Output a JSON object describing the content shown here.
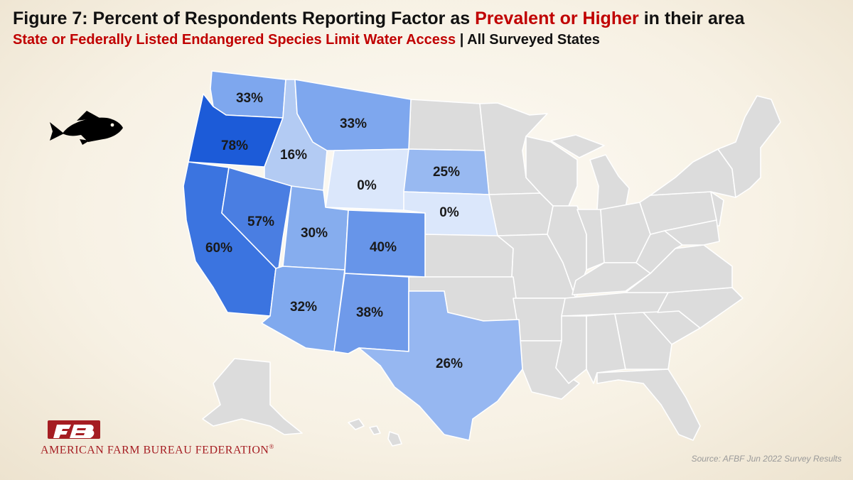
{
  "header": {
    "title_prefix": "Figure 7: Percent of Respondents Reporting Factor as",
    "title_highlight": "Prevalent or Higher",
    "title_suffix": "in their area",
    "subtitle_highlight": "State or Federally Listed Endangered Species Limit Water Access",
    "subtitle_suffix": "| All Surveyed States"
  },
  "map": {
    "metric": "Percent of respondents reporting factor as prevalent or higher",
    "states": [
      {
        "state": "Washington",
        "value": "33%",
        "color": "#7ea7ee"
      },
      {
        "state": "Oregon",
        "value": "78%",
        "color": "#1c5bd8"
      },
      {
        "state": "Idaho",
        "value": "16%",
        "color": "#b3cbf3"
      },
      {
        "state": "Montana",
        "value": "33%",
        "color": "#7ea7ee"
      },
      {
        "state": "Wyoming",
        "value": "0%",
        "color": "#dbe7fb"
      },
      {
        "state": "South Dakota",
        "value": "25%",
        "color": "#98b9f1"
      },
      {
        "state": "Nebraska",
        "value": "0%",
        "color": "#dbe7fb"
      },
      {
        "state": "California",
        "value": "60%",
        "color": "#3b74e0"
      },
      {
        "state": "Nevada",
        "value": "57%",
        "color": "#4a7ee2"
      },
      {
        "state": "Utah",
        "value": "30%",
        "color": "#86adee"
      },
      {
        "state": "Colorado",
        "value": "40%",
        "color": "#6795e9"
      },
      {
        "state": "Arizona",
        "value": "32%",
        "color": "#80a9ee"
      },
      {
        "state": "New Mexico",
        "value": "38%",
        "color": "#6f9aea"
      },
      {
        "state": "Texas",
        "value": "26%",
        "color": "#96b7f1"
      }
    ],
    "unsurveyed_color": "#dcdcdc"
  },
  "icon": {
    "name": "fish-icon"
  },
  "branding": {
    "logo_text": "AMERICAN FARM BUREAU FEDERATION",
    "trademark": "®",
    "brand_color": "#a51d22"
  },
  "source": "Source: AFBF Jun 2022 Survey Results"
}
